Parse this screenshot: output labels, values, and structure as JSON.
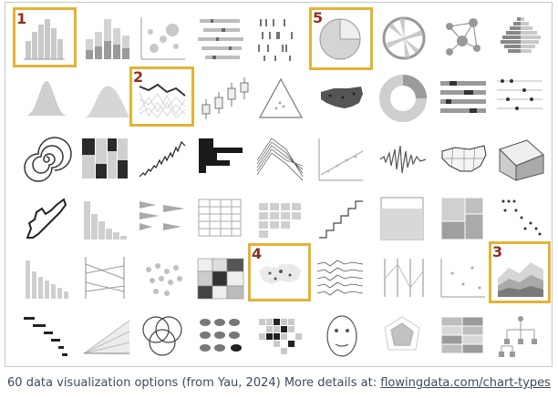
{
  "figure": {
    "highlights": [
      {
        "number": "1"
      },
      {
        "number": "2"
      },
      {
        "number": "3"
      },
      {
        "number": "4"
      },
      {
        "number": "5"
      }
    ],
    "grid": {
      "rows": 6,
      "columns": 10,
      "total_items": 60
    },
    "caption_text": "60 data visualization options (from Yau, 2024) More details at: ",
    "caption_link": "flowingdata.com/chart-types",
    "colors": {
      "highlight_border": "#e3b335",
      "number_label": "#8e2e23",
      "chart_gray": "#bdbdbd",
      "chart_dark": "#2a2a2a"
    }
  }
}
